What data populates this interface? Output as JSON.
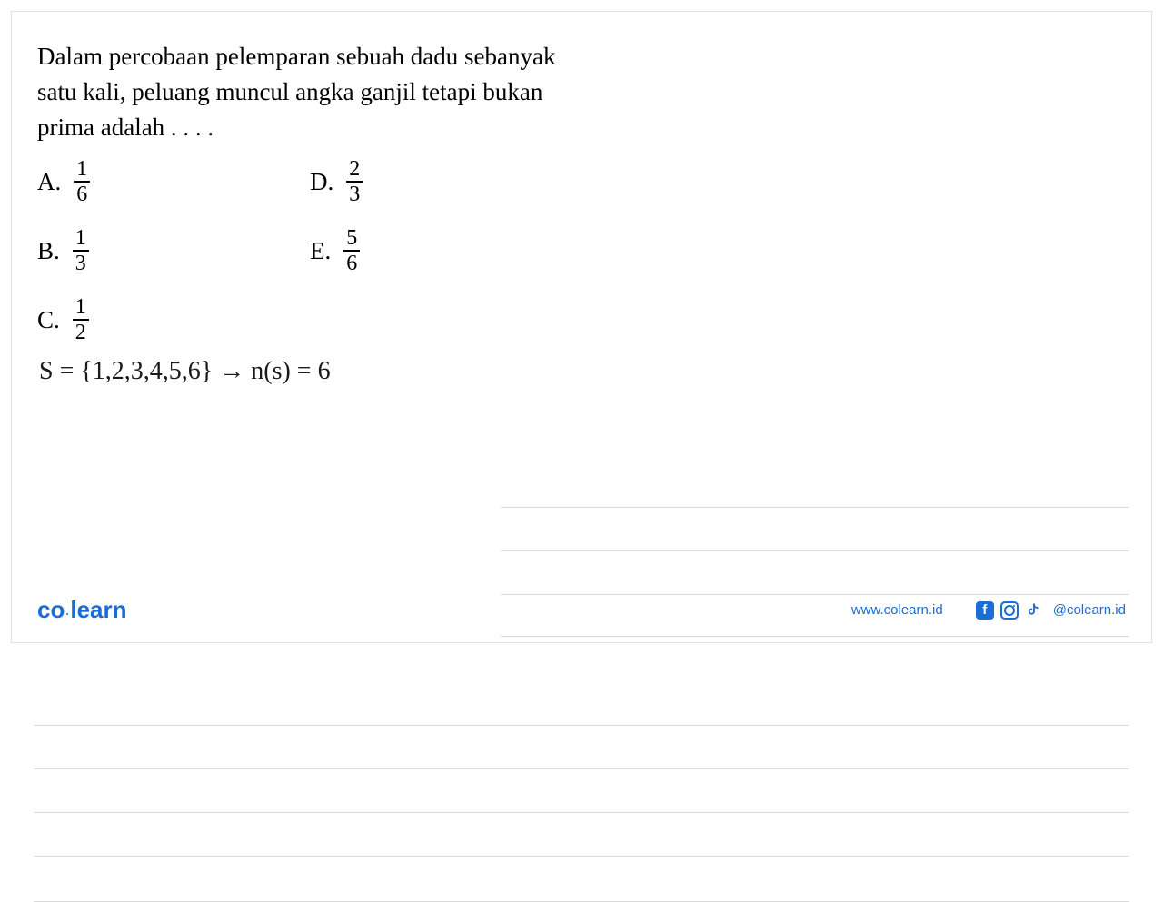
{
  "question": {
    "text": "Dalam percobaan pelemparan sebuah dadu sebanyak satu kali, peluang muncul angka ganjil tetapi bukan prima adalah . . . .",
    "text_fontsize": 27,
    "text_color": "#000000"
  },
  "options": [
    {
      "label": "A.",
      "numerator": "1",
      "denominator": "6",
      "position": "a"
    },
    {
      "label": "B.",
      "numerator": "1",
      "denominator": "3",
      "position": "b"
    },
    {
      "label": "C.",
      "numerator": "1",
      "denominator": "2",
      "position": "c"
    },
    {
      "label": "D.",
      "numerator": "2",
      "denominator": "3",
      "position": "d"
    },
    {
      "label": "E.",
      "numerator": "5",
      "denominator": "6",
      "position": "e"
    }
  ],
  "handwriting": {
    "text": "S = {1,2,3,4,5,6} → n(s) = 6",
    "fontsize": 28,
    "color": "#1a1a1a"
  },
  "ruled_lines": {
    "color": "#d8d8d8",
    "right_only_tops": [
      180,
      228,
      276,
      322
    ],
    "full_tops": [
      420,
      468,
      516,
      564,
      614
    ]
  },
  "footer": {
    "logo": {
      "co": "co",
      "dot": "·",
      "learn": "learn",
      "color": "#1a6dd4"
    },
    "website": "www.colearn.id",
    "social_handle": "@colearn.id",
    "social_color": "#1a6dd4"
  },
  "colors": {
    "background": "#ffffff",
    "border": "#e0e0e0",
    "brand": "#1a6dd4"
  }
}
